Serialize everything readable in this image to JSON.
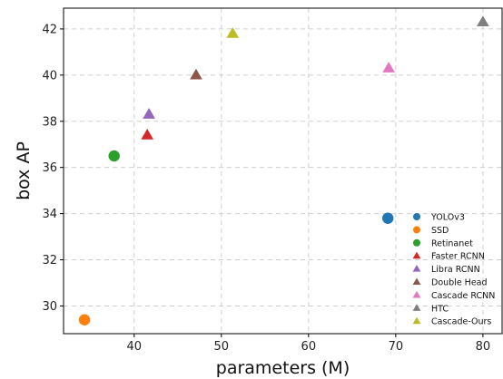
{
  "chart_data": {
    "type": "scatter",
    "xlabel": "parameters (M)",
    "ylabel": "box AP",
    "xlim": [
      31.9,
      82.2
    ],
    "ylim": [
      28.8,
      42.9
    ],
    "xticks": [
      40,
      50,
      60,
      70,
      80
    ],
    "yticks": [
      30,
      32,
      34,
      36,
      38,
      40,
      42
    ],
    "grid": true,
    "legend_position": "lower-right",
    "series": [
      {
        "name": "YOLOv3",
        "marker": "circle",
        "color": "#1f77b4",
        "x": 69.1,
        "y": 33.8
      },
      {
        "name": "SSD",
        "marker": "circle",
        "color": "#ff7f0e",
        "x": 34.3,
        "y": 29.4
      },
      {
        "name": "Retinanet",
        "marker": "circle",
        "color": "#2ca02c",
        "x": 37.7,
        "y": 36.5
      },
      {
        "name": "Faster RCNN",
        "marker": "triangle",
        "color": "#d62728",
        "x": 41.5,
        "y": 37.4
      },
      {
        "name": "Libra RCNN",
        "marker": "triangle",
        "color": "#9467bd",
        "x": 41.7,
        "y": 38.3
      },
      {
        "name": "Double Head",
        "marker": "triangle",
        "color": "#8c564b",
        "x": 47.1,
        "y": 40.0
      },
      {
        "name": "Cascade RCNN",
        "marker": "triangle",
        "color": "#e377c2",
        "x": 69.2,
        "y": 40.3
      },
      {
        "name": "HTC",
        "marker": "triangle",
        "color": "#7f7f7f",
        "x": 80.0,
        "y": 42.3
      },
      {
        "name": "Cascade-Ours",
        "marker": "triangle",
        "color": "#bcbd22",
        "x": 51.3,
        "y": 41.8
      }
    ]
  }
}
